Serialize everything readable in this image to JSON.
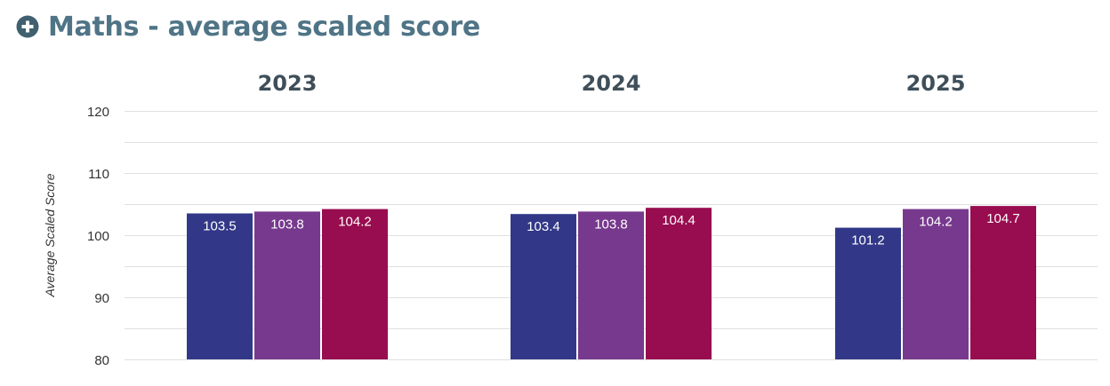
{
  "header": {
    "title": "Maths - average scaled score",
    "expand_icon": "plus-circle-icon"
  },
  "colors": {
    "title": "#4f7486",
    "icon": "#40606f",
    "panel_title": "#3f4f5a",
    "axis_text": "#333333",
    "grid": "#e0e0e0",
    "bar_label": "#ffffff"
  },
  "chart_data": {
    "type": "bar",
    "ylabel": "Average Scaled Score",
    "ylim": [
      80,
      120
    ],
    "yticks": [
      80,
      90,
      100,
      110,
      120
    ],
    "grid": true,
    "panels": [
      {
        "title": "2023",
        "values": [
          103.5,
          103.8,
          104.2
        ]
      },
      {
        "title": "2024",
        "values": [
          103.4,
          103.8,
          104.4
        ]
      },
      {
        "title": "2025",
        "values": [
          101.2,
          104.2,
          104.7
        ]
      }
    ],
    "bar_colors": [
      "#323887",
      "#77398e",
      "#980d4f"
    ]
  }
}
